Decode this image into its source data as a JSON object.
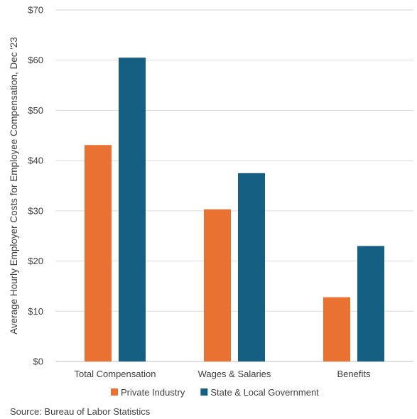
{
  "chart_data": {
    "type": "bar",
    "title": "",
    "xlabel": "",
    "ylabel": "Average Hourly Employer Costs for Employee Compensation, Dec '23",
    "categories": [
      "Total Compensation",
      "Wages & Salaries",
      "Benefits"
    ],
    "series": [
      {
        "name": "Private Industry",
        "color": "#E97132",
        "values": [
          43.1,
          30.3,
          12.8
        ]
      },
      {
        "name": "State & Local Government",
        "color": "#156082",
        "values": [
          60.5,
          37.5,
          23.0
        ]
      }
    ],
    "ylim": [
      0,
      70
    ],
    "yticks": [
      0,
      10,
      20,
      30,
      40,
      50,
      60,
      70
    ],
    "ytick_labels": [
      "$0",
      "$10",
      "$20",
      "$30",
      "$40",
      "$50",
      "$60",
      "$70"
    ],
    "grid": true,
    "legend_position": "bottom"
  },
  "source": "Source: Bureau of Labor Statistics"
}
